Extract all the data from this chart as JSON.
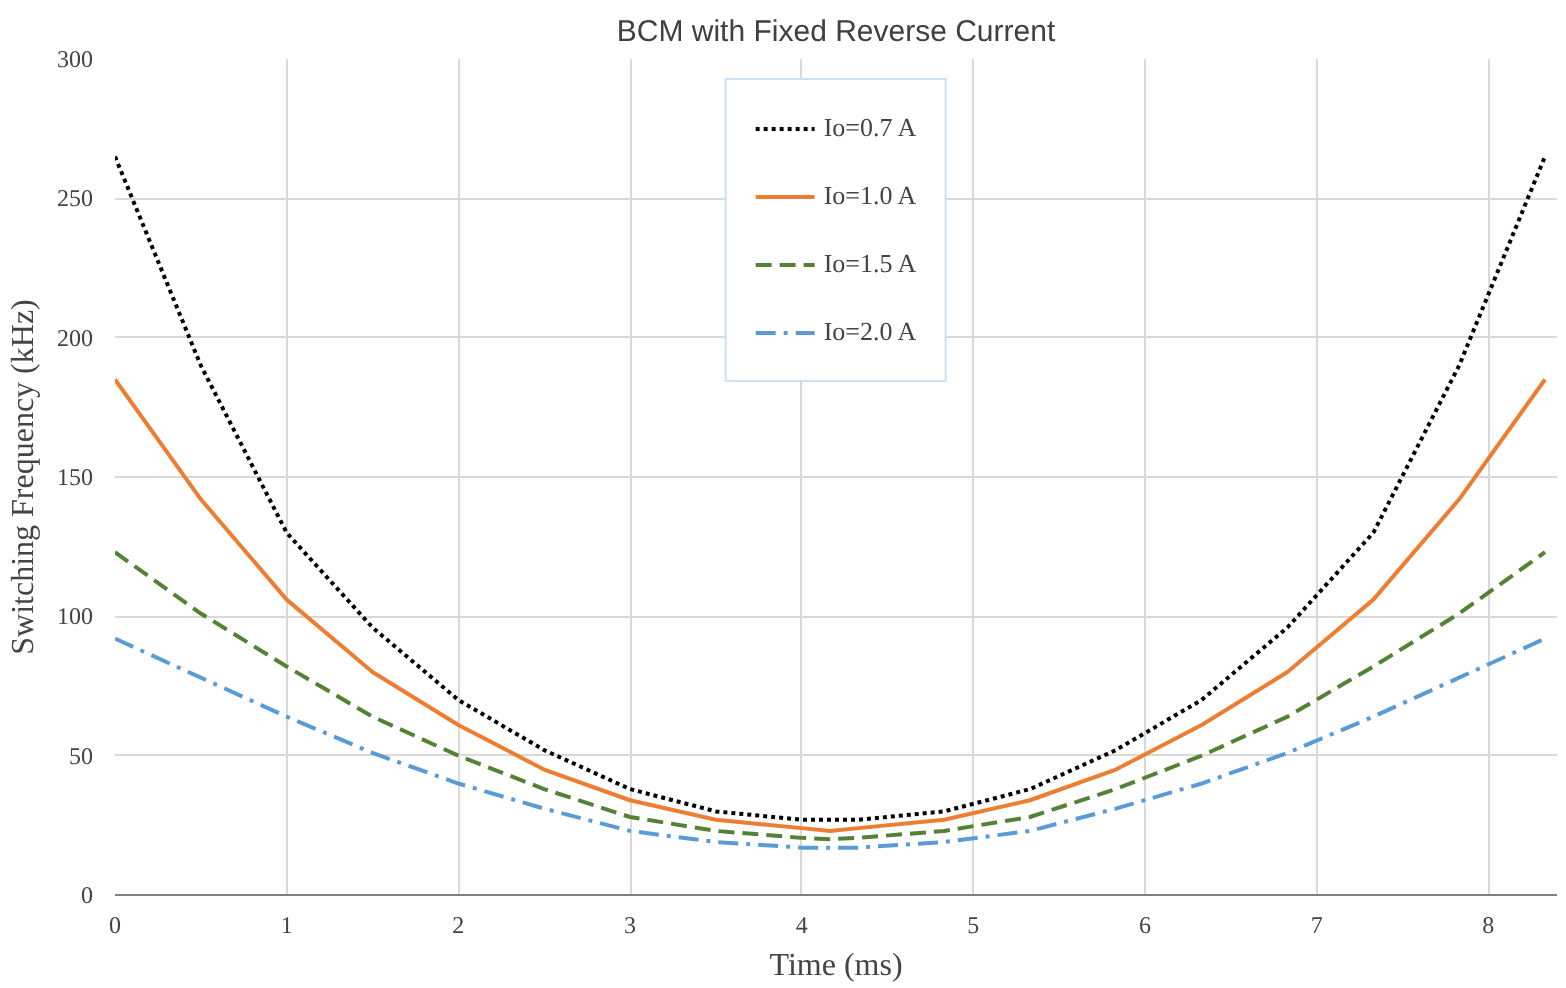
{
  "chart_data": {
    "type": "line",
    "title": "BCM with Fixed Reverse Current",
    "xlabel": "Time (ms)",
    "ylabel": "Switching Frequency (kHz)",
    "x": [
      0,
      0.5,
      1,
      1.5,
      2,
      2.5,
      3,
      3.5,
      4,
      4.165,
      4.33,
      4.83,
      5.33,
      5.83,
      6.33,
      6.83,
      7.33,
      7.83,
      8.33
    ],
    "series": [
      {
        "name": "Io=0.7 A",
        "color": "#000000",
        "line_style": "dotted",
        "values": [
          265,
          190,
          130,
          96,
          70,
          52,
          38,
          30,
          27,
          27,
          27,
          30,
          38,
          52,
          70,
          96,
          130,
          190,
          265
        ]
      },
      {
        "name": "Io=1.0 A",
        "color": "#ed7d31",
        "line_style": "solid",
        "values": [
          185,
          142,
          106,
          80,
          61,
          45,
          34,
          27,
          24,
          23,
          24,
          27,
          34,
          45,
          61,
          80,
          106,
          142,
          185
        ]
      },
      {
        "name": "Io=1.5 A",
        "color": "#548235",
        "line_style": "dashed",
        "values": [
          123,
          101,
          82,
          64,
          50,
          38,
          28,
          23,
          20.5,
          20,
          20.5,
          23,
          28,
          38,
          50,
          64,
          82,
          101,
          123
        ]
      },
      {
        "name": "Io=2.0 A",
        "color": "#5b9bd5",
        "line_style": "dashdot",
        "values": [
          92,
          78,
          64,
          51,
          40,
          31,
          23,
          19,
          17,
          17,
          17,
          19,
          23,
          31,
          40,
          51,
          64,
          78,
          92
        ]
      }
    ],
    "xlim": [
      0,
      8.4
    ],
    "ylim": [
      0,
      300
    ],
    "xticks": [
      0,
      1,
      2,
      3,
      4,
      5,
      6,
      7,
      8
    ],
    "yticks": [
      0,
      50,
      100,
      150,
      200,
      250,
      300
    ],
    "grid": true,
    "legend": "top"
  }
}
